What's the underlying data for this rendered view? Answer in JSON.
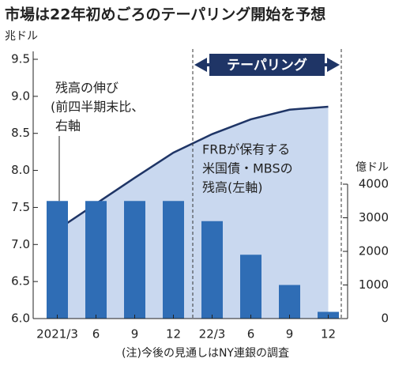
{
  "chart_data": {
    "type": "bar",
    "title": "市場は22年初めごろのテーパリング開始を予想",
    "y_axis_label": "兆ドル",
    "y2_axis_label": "億ドル",
    "categories": [
      "2021/3",
      "6",
      "9",
      "12",
      "22/3",
      "6",
      "9",
      "12"
    ],
    "series": [
      {
        "name": [
          "FRBが保有する",
          "米国債・MBSの",
          "残高(左軸)"
        ],
        "type": "area",
        "axis": "y",
        "color": "#c9d8ef",
        "line_color": "#1f3566",
        "values": [
          7.2,
          7.55,
          7.9,
          8.24,
          8.49,
          8.69,
          8.82,
          8.86
        ]
      },
      {
        "name": [
          "残高の伸び",
          "(前四半期末比、",
          "右軸"
        ],
        "type": "bar",
        "axis": "y2",
        "color": "#2f6db5",
        "values": [
          3500,
          3500,
          3500,
          3500,
          2900,
          1900,
          1000,
          200
        ]
      }
    ],
    "ylim": [
      6,
      9.5
    ],
    "yticks": [
      {
        "value": 6,
        "label": "6.0"
      },
      6.5,
      {
        "value": 7,
        "label": "7.0"
      },
      7.5,
      {
        "value": 8,
        "label": "8.0"
      },
      8.5,
      {
        "value": 9,
        "label": "9.0"
      },
      9.5
    ],
    "y2lim": [
      0,
      4000
    ],
    "y2ticks": [
      0,
      1000,
      2000,
      3000,
      4000
    ],
    "taper_label": "テーパリング",
    "footnote": "(注)今後の見通しはNY連銀の調査"
  }
}
